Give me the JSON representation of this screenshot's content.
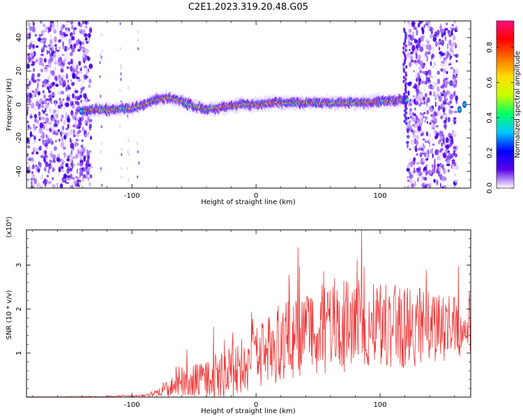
{
  "figure_title": "C2E1.2023.319.20.48.G05",
  "colorbar": {
    "label": "Normalized spectral amplitude",
    "ticks": [
      "0.0",
      "0.2",
      "0.4",
      "0.6",
      "0.8"
    ],
    "tick_values": [
      0.0,
      0.2,
      0.4,
      0.6,
      0.8
    ],
    "range": [
      0,
      0.95
    ],
    "colormap": [
      "#ffffff",
      "#5a00e8",
      "#0000ff",
      "#00c8ff",
      "#00ff66",
      "#c8ff00",
      "#ffdd00",
      "#ff7000",
      "#ff0000",
      "#ff1080"
    ]
  },
  "chart_data": [
    {
      "type": "heatmap",
      "title": "",
      "xlabel": "Height of straight line (km)",
      "ylabel": "Frequency (Hz)",
      "xlim": [
        -185,
        173
      ],
      "ylim": [
        -50,
        50
      ],
      "x_ticks": [
        -100,
        0,
        100
      ],
      "x_tick_labels": [
        "-100",
        "0",
        "100"
      ],
      "y_ticks": [
        -40,
        -20,
        0,
        20,
        40
      ],
      "y_tick_labels": [
        "-40",
        "-20",
        "0",
        "20",
        "40"
      ],
      "noise_regions_km": [
        [
          -185,
          -133
        ],
        [
          122,
          162
        ]
      ],
      "ridge": {
        "x_km": [
          -140,
          -130,
          -120,
          -110,
          -100,
          -90,
          -80,
          -70,
          -60,
          -50,
          -40,
          -30,
          -20,
          -10,
          0,
          10,
          20,
          30,
          40,
          50,
          60,
          70,
          80,
          90,
          100,
          110,
          120,
          162,
          170
        ],
        "freq_hz": [
          -4,
          -3,
          -3,
          -3,
          -2,
          0,
          3,
          4,
          2,
          -1,
          -3,
          -2,
          -1,
          0,
          0,
          1,
          1,
          1,
          1,
          1,
          1,
          1,
          1,
          1,
          2,
          2,
          3,
          0,
          0
        ]
      }
    },
    {
      "type": "line",
      "title": "",
      "xlabel": "Height of straight line (km)",
      "ylabel": "SNR (10 * v/v)",
      "y_multiplier_label": "(x10⁴)",
      "xlim": [
        -185,
        173
      ],
      "ylim": [
        0,
        3.8
      ],
      "x_ticks": [
        -100,
        0,
        100
      ],
      "x_tick_labels": [
        "-100",
        "0",
        "100"
      ],
      "y_ticks": [
        1,
        2,
        3
      ],
      "y_tick_labels": [
        "1",
        "2",
        "3"
      ],
      "series": [
        {
          "color": "#ee3333",
          "envelope_x_km": [
            -185,
            -120,
            -90,
            -80,
            -70,
            -60,
            -50,
            -40,
            -30,
            -20,
            -10,
            0,
            10,
            20,
            30,
            40,
            50,
            60,
            70,
            80,
            90,
            100,
            110,
            120,
            130,
            140,
            150,
            160,
            173
          ],
          "envelope_mean": [
            0.0,
            0.01,
            0.04,
            0.1,
            0.2,
            0.3,
            0.38,
            0.45,
            0.5,
            0.55,
            0.6,
            0.85,
            1.05,
            1.25,
            1.35,
            1.5,
            1.55,
            1.6,
            1.65,
            1.7,
            1.7,
            1.7,
            1.65,
            1.6,
            1.6,
            1.6,
            1.6,
            1.6,
            1.6
          ],
          "envelope_amp": [
            0.0,
            0.01,
            0.03,
            0.08,
            0.2,
            0.3,
            0.4,
            0.5,
            0.55,
            0.6,
            0.6,
            0.7,
            0.8,
            0.9,
            0.95,
            1.0,
            1.05,
            1.1,
            1.1,
            1.1,
            1.05,
            1.0,
            1.0,
            0.95,
            0.9,
            0.85,
            0.8,
            0.75,
            0.7
          ],
          "peak_value": 3.8,
          "peak_x_km": 85
        }
      ]
    }
  ]
}
